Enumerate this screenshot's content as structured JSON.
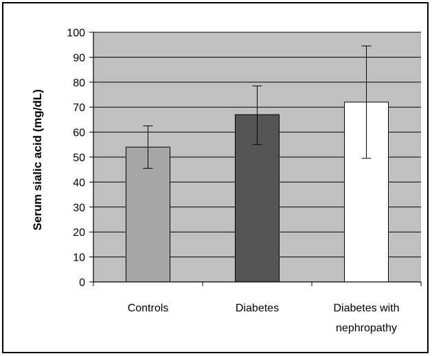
{
  "chart_data": {
    "type": "bar",
    "title": "",
    "xlabel": "",
    "ylabel": "Serum sialic acid (mg/dL)",
    "ylim": [
      0,
      100
    ],
    "yticks": [
      0,
      10,
      20,
      30,
      40,
      50,
      60,
      70,
      80,
      90,
      100
    ],
    "categories": [
      {
        "lines": [
          "Controls"
        ]
      },
      {
        "lines": [
          "Diabetes"
        ]
      },
      {
        "lines": [
          "Diabetes with",
          "nephropathy"
        ]
      }
    ],
    "values": [
      54,
      67,
      72
    ],
    "error_bars": [
      {
        "low": 45.5,
        "high": 62.5
      },
      {
        "low": 55,
        "high": 78.5
      },
      {
        "low": 49.5,
        "high": 94.5
      }
    ],
    "grid": true,
    "legend": "none",
    "colors": {
      "plot_background": "#c0c0c0",
      "bars": [
        "#a6a6a6",
        "#555555",
        "#ffffff"
      ],
      "grid": "#000000"
    }
  }
}
